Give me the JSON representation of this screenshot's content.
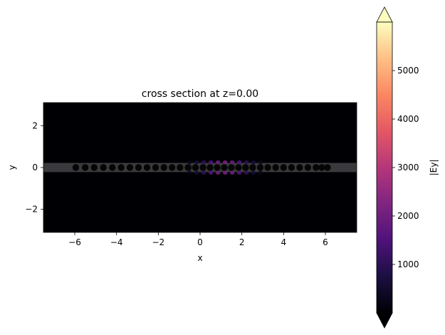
{
  "chart_data": {
    "type": "heatmap",
    "title": "cross section at z=0.00",
    "xlabel": "x",
    "ylabel": "y",
    "xlim": [
      -7.5,
      7.5
    ],
    "ylim": [
      -3.1,
      3.1
    ],
    "xticks": [
      -6,
      -4,
      -2,
      0,
      2,
      4,
      6
    ],
    "xtick_labels": [
      "−6",
      "−4",
      "−2",
      "0",
      "2",
      "4",
      "6"
    ],
    "yticks": [
      -2,
      0,
      2
    ],
    "ytick_labels": [
      "−2",
      "0",
      "2"
    ],
    "colorbar": {
      "label": "|Ey|",
      "colormap": "magma",
      "range": [
        0,
        6000
      ],
      "extend": "both",
      "ticks": [
        1000,
        2000,
        3000,
        4000,
        5000
      ],
      "tick_labels": [
        "1000",
        "2000",
        "3000",
        "4000",
        "5000"
      ]
    },
    "waveguide": {
      "y_center": 0,
      "half_width": 0.22,
      "color": "#3a3a3d"
    },
    "holes": {
      "radius": 0.1,
      "color": "#050505",
      "x": [
        -5.95,
        -5.5,
        -5.07,
        -4.63,
        -4.2,
        -3.78,
        -3.36,
        -2.95,
        -2.54,
        -2.13,
        -1.73,
        -1.34,
        -0.96,
        -0.58,
        -0.22,
        0.14,
        0.48,
        0.82,
        1.16,
        1.5,
        1.84,
        2.18,
        2.52,
        2.88,
        3.24,
        3.62,
        4.0,
        4.38,
        4.77,
        5.16,
        5.55,
        5.83,
        6.1
      ]
    },
    "field": {
      "x_center": 1.2,
      "x_sigma": 0.85,
      "y_sigma": 0.26,
      "period": 0.34,
      "peak": 6000
    }
  }
}
